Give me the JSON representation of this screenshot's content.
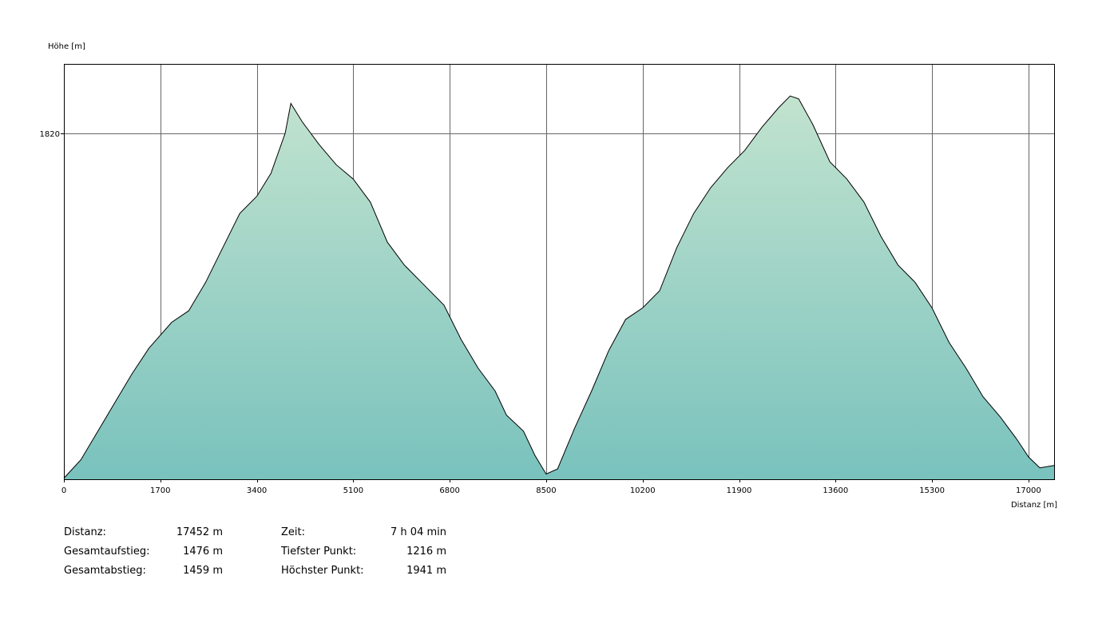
{
  "chart_data": {
    "type": "area",
    "xlabel": "Distanz [m]",
    "ylabel": "Höhe [m]",
    "xlim": [
      0,
      17452
    ],
    "ylim": [
      1216,
      1941
    ],
    "x_ticks": [
      0,
      1700,
      3400,
      5100,
      6800,
      8500,
      10200,
      11900,
      13600,
      15300,
      17000
    ],
    "y_ticks": [
      1820
    ],
    "grid": true,
    "fill_gradient": [
      "#c2e3cf",
      "#79c2bd"
    ],
    "line_color": "#000000",
    "series": [
      {
        "x": [
          0,
          300,
          600,
          900,
          1200,
          1500,
          1900,
          2200,
          2500,
          2800,
          3100,
          3400,
          3650,
          3900,
          4000,
          4200,
          4500,
          4800,
          5100,
          5400,
          5700,
          6000,
          6300,
          6700,
          7000,
          7300,
          7600,
          7800,
          8100,
          8300,
          8500,
          8700,
          9000,
          9300,
          9600,
          9900,
          10200,
          10500,
          10800,
          11100,
          11400,
          11700,
          12000,
          12300,
          12600,
          12800,
          12950,
          13200,
          13500,
          13800,
          14100,
          14400,
          14700,
          15000,
          15300,
          15600,
          15900,
          16200,
          16500,
          16800,
          17000,
          17200,
          17452
        ],
        "y": [
          1218,
          1250,
          1300,
          1350,
          1400,
          1445,
          1490,
          1510,
          1560,
          1620,
          1680,
          1710,
          1750,
          1820,
          1872,
          1840,
          1800,
          1765,
          1740,
          1700,
          1630,
          1590,
          1560,
          1520,
          1460,
          1410,
          1370,
          1328,
          1300,
          1258,
          1225,
          1234,
          1305,
          1370,
          1440,
          1495,
          1515,
          1545,
          1620,
          1680,
          1725,
          1760,
          1790,
          1830,
          1865,
          1885,
          1880,
          1835,
          1770,
          1740,
          1700,
          1640,
          1590,
          1560,
          1515,
          1455,
          1410,
          1360,
          1325,
          1285,
          1255,
          1236,
          1240
        ]
      }
    ]
  },
  "stats": {
    "left": [
      {
        "label": "Distanz:",
        "value": "17452 m"
      },
      {
        "label": "Gesamtaufstieg:",
        "value": "1476 m"
      },
      {
        "label": "Gesamtabstieg:",
        "value": "1459 m"
      }
    ],
    "right": [
      {
        "label": "Zeit:",
        "value": "7 h 04 min"
      },
      {
        "label": "Tiefster Punkt:",
        "value": "1216 m"
      },
      {
        "label": "Höchster Punkt:",
        "value": "1941 m"
      }
    ]
  }
}
